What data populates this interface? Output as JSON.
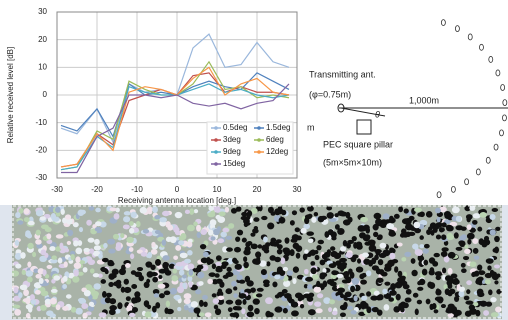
{
  "chart_data": {
    "type": "line",
    "ylabel": "Relative received level [dB]",
    "xlabel": "Receiving antenna location [deg.]",
    "x": [
      -29,
      -25,
      -20,
      -16,
      -12,
      -8,
      -4,
      0,
      4,
      8,
      12,
      16,
      20,
      24,
      28
    ],
    "xlim": [
      -30,
      30
    ],
    "xticks": [
      -30,
      -20,
      -10,
      0,
      10,
      20,
      30
    ],
    "ylim": [
      -30,
      30
    ],
    "yticks": [
      -30,
      -20,
      -10,
      0,
      10,
      20,
      30
    ],
    "grid": true,
    "legend": "lower right",
    "series": [
      {
        "name": "0.5deg",
        "color": "#9ab7dc",
        "values": [
          -12,
          -14,
          -5,
          -17,
          4,
          1,
          2,
          0,
          17,
          22,
          10,
          11,
          19,
          12,
          10
        ]
      },
      {
        "name": "1.5deg",
        "color": "#4f81bd",
        "values": [
          -11,
          -13,
          -5,
          -15,
          4,
          0,
          1,
          0,
          3,
          5,
          3,
          2,
          8,
          5,
          2
        ]
      },
      {
        "name": "3deg",
        "color": "#c0504d",
        "values": [
          -26,
          -25,
          -14,
          -18,
          -2,
          0,
          2,
          0,
          7,
          8,
          1,
          3,
          1,
          1,
          0
        ]
      },
      {
        "name": "6deg",
        "color": "#9bbb59",
        "values": [
          -27,
          -26,
          -13,
          -16,
          5,
          2,
          0,
          0,
          4,
          12,
          2,
          3,
          -1,
          0,
          -1
        ]
      },
      {
        "name": "9deg",
        "color": "#4bacc6",
        "values": [
          -27,
          -26,
          -15,
          -19,
          3,
          1,
          0,
          0,
          2,
          4,
          1,
          2,
          0,
          -1,
          0
        ]
      },
      {
        "name": "12deg",
        "color": "#f79646",
        "values": [
          -26,
          -25,
          -14,
          -20,
          1,
          3,
          2,
          0,
          6,
          10,
          0,
          4,
          6,
          1,
          0
        ]
      },
      {
        "name": "15deg",
        "color": "#8064a2",
        "values": [
          -28,
          -28,
          -15,
          -12,
          0,
          0,
          -1,
          0,
          -3,
          -4,
          -3,
          -5,
          -3,
          -2,
          4
        ]
      }
    ]
  },
  "diagram": {
    "transmitter": "Transmitting ant.",
    "diameter": "(φ=0.75m)",
    "distance": "1,000m",
    "angle": "θ",
    "unit": "m",
    "pillar": "PEC square pillar",
    "pillar_size": "(5m×5m×10m)"
  }
}
